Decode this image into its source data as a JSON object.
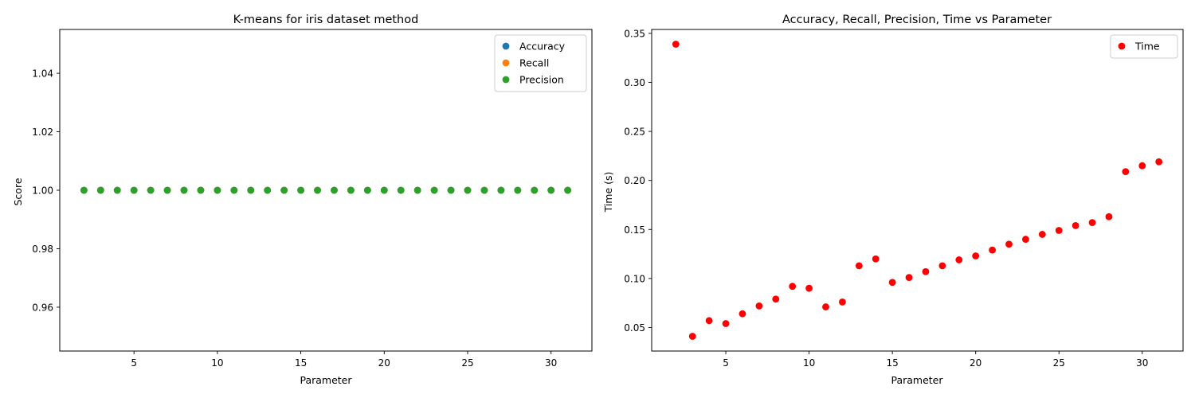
{
  "chart_data": [
    {
      "type": "scatter",
      "title": "K-means for iris dataset method",
      "xlabel": "Parameter",
      "ylabel": "Score",
      "xlim": [
        0.55,
        32.45
      ],
      "ylim": [
        0.945,
        1.055
      ],
      "xticks": [
        5,
        10,
        15,
        20,
        25,
        30
      ],
      "yticks": [
        0.96,
        0.98,
        1.0,
        1.02,
        1.04
      ],
      "ytick_labels": [
        "0.96",
        "0.98",
        "1.00",
        "1.02",
        "1.04"
      ],
      "grid": false,
      "legend_position": "top-right",
      "x": [
        2,
        3,
        4,
        5,
        6,
        7,
        8,
        9,
        10,
        11,
        12,
        13,
        14,
        15,
        16,
        17,
        18,
        19,
        20,
        21,
        22,
        23,
        24,
        25,
        26,
        27,
        28,
        29,
        30,
        31
      ],
      "series": [
        {
          "name": "Accuracy",
          "color": "#1f77b4",
          "values": [
            1,
            1,
            1,
            1,
            1,
            1,
            1,
            1,
            1,
            1,
            1,
            1,
            1,
            1,
            1,
            1,
            1,
            1,
            1,
            1,
            1,
            1,
            1,
            1,
            1,
            1,
            1,
            1,
            1,
            1
          ]
        },
        {
          "name": "Recall",
          "color": "#ff7f0e",
          "values": [
            1,
            1,
            1,
            1,
            1,
            1,
            1,
            1,
            1,
            1,
            1,
            1,
            1,
            1,
            1,
            1,
            1,
            1,
            1,
            1,
            1,
            1,
            1,
            1,
            1,
            1,
            1,
            1,
            1,
            1
          ]
        },
        {
          "name": "Precision",
          "color": "#2ca02c",
          "values": [
            1,
            1,
            1,
            1,
            1,
            1,
            1,
            1,
            1,
            1,
            1,
            1,
            1,
            1,
            1,
            1,
            1,
            1,
            1,
            1,
            1,
            1,
            1,
            1,
            1,
            1,
            1,
            1,
            1,
            1
          ]
        }
      ]
    },
    {
      "type": "scatter",
      "title": "Accuracy, Recall, Precision, Time vs Parameter",
      "xlabel": "Parameter",
      "ylabel": "Time (s)",
      "xlim": [
        0.55,
        32.45
      ],
      "ylim": [
        0.026,
        0.354
      ],
      "xticks": [
        5,
        10,
        15,
        20,
        25,
        30
      ],
      "yticks": [
        0.05,
        0.1,
        0.15,
        0.2,
        0.25,
        0.3,
        0.35
      ],
      "ytick_labels": [
        "0.05",
        "0.10",
        "0.15",
        "0.20",
        "0.25",
        "0.30",
        "0.35"
      ],
      "grid": false,
      "legend_position": "top-right",
      "x": [
        2,
        3,
        4,
        5,
        6,
        7,
        8,
        9,
        10,
        11,
        12,
        13,
        14,
        15,
        16,
        17,
        18,
        19,
        20,
        21,
        22,
        23,
        24,
        25,
        26,
        27,
        28,
        29,
        30,
        31
      ],
      "series": [
        {
          "name": "Time",
          "color": "#ff0000",
          "values": [
            0.339,
            0.041,
            0.057,
            0.054,
            0.064,
            0.072,
            0.079,
            0.092,
            0.09,
            0.071,
            0.076,
            0.113,
            0.12,
            0.096,
            0.101,
            0.107,
            0.113,
            0.119,
            0.123,
            0.129,
            0.135,
            0.14,
            0.145,
            0.149,
            0.154,
            0.157,
            0.163,
            0.209,
            0.215,
            0.219
          ]
        }
      ]
    }
  ]
}
